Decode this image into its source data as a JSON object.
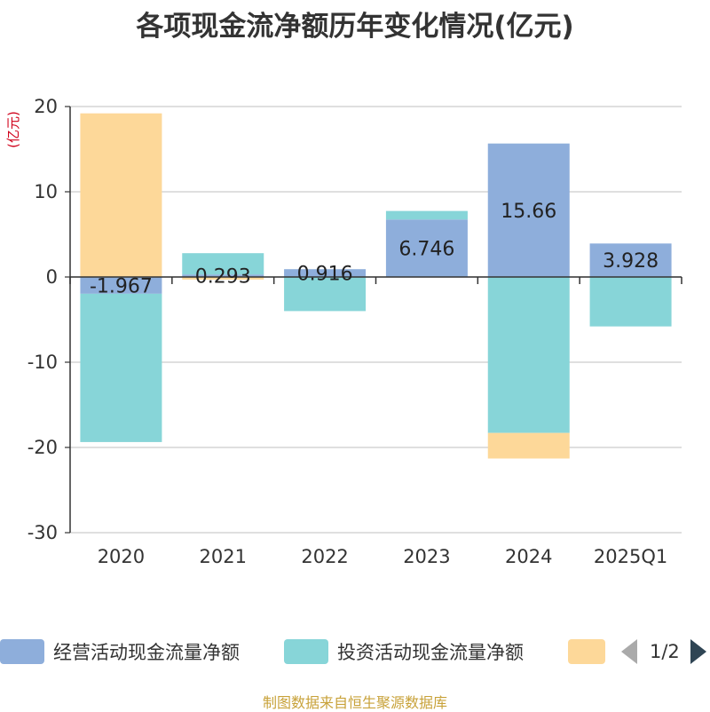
{
  "chart_data": {
    "type": "bar",
    "stacked": true,
    "title": "各项现金流净额历年变化情况(亿元)",
    "ylabel": "(亿元)",
    "ylim": [
      -30,
      20
    ],
    "yticks": [
      20,
      10,
      0,
      -10,
      -20,
      -30
    ],
    "grid": true,
    "categories": [
      "2020",
      "2021",
      "2022",
      "2023",
      "2024",
      "2025Q1"
    ],
    "series": [
      {
        "name": "经营活动现金流量净额",
        "color": "#8eaedb",
        "values": [
          -1.967,
          0.293,
          0.916,
          6.746,
          15.66,
          3.928
        ],
        "labels": [
          "-1.967",
          "0.293",
          "0.916",
          "6.746",
          "15.66",
          "3.928"
        ]
      },
      {
        "name": "投资活动现金流量净额",
        "color": "#87d5d8",
        "values": [
          -17.4,
          2.5,
          -4.0,
          1.0,
          -18.3,
          -5.8
        ]
      },
      {
        "name": "",
        "color": "#fdd899",
        "values": [
          19.2,
          -0.3,
          0,
          0,
          -3.0,
          0
        ]
      }
    ],
    "legend_position": "bottom"
  },
  "pager": {
    "text": "1/2"
  },
  "source": "制图数据来自恒生聚源数据库"
}
